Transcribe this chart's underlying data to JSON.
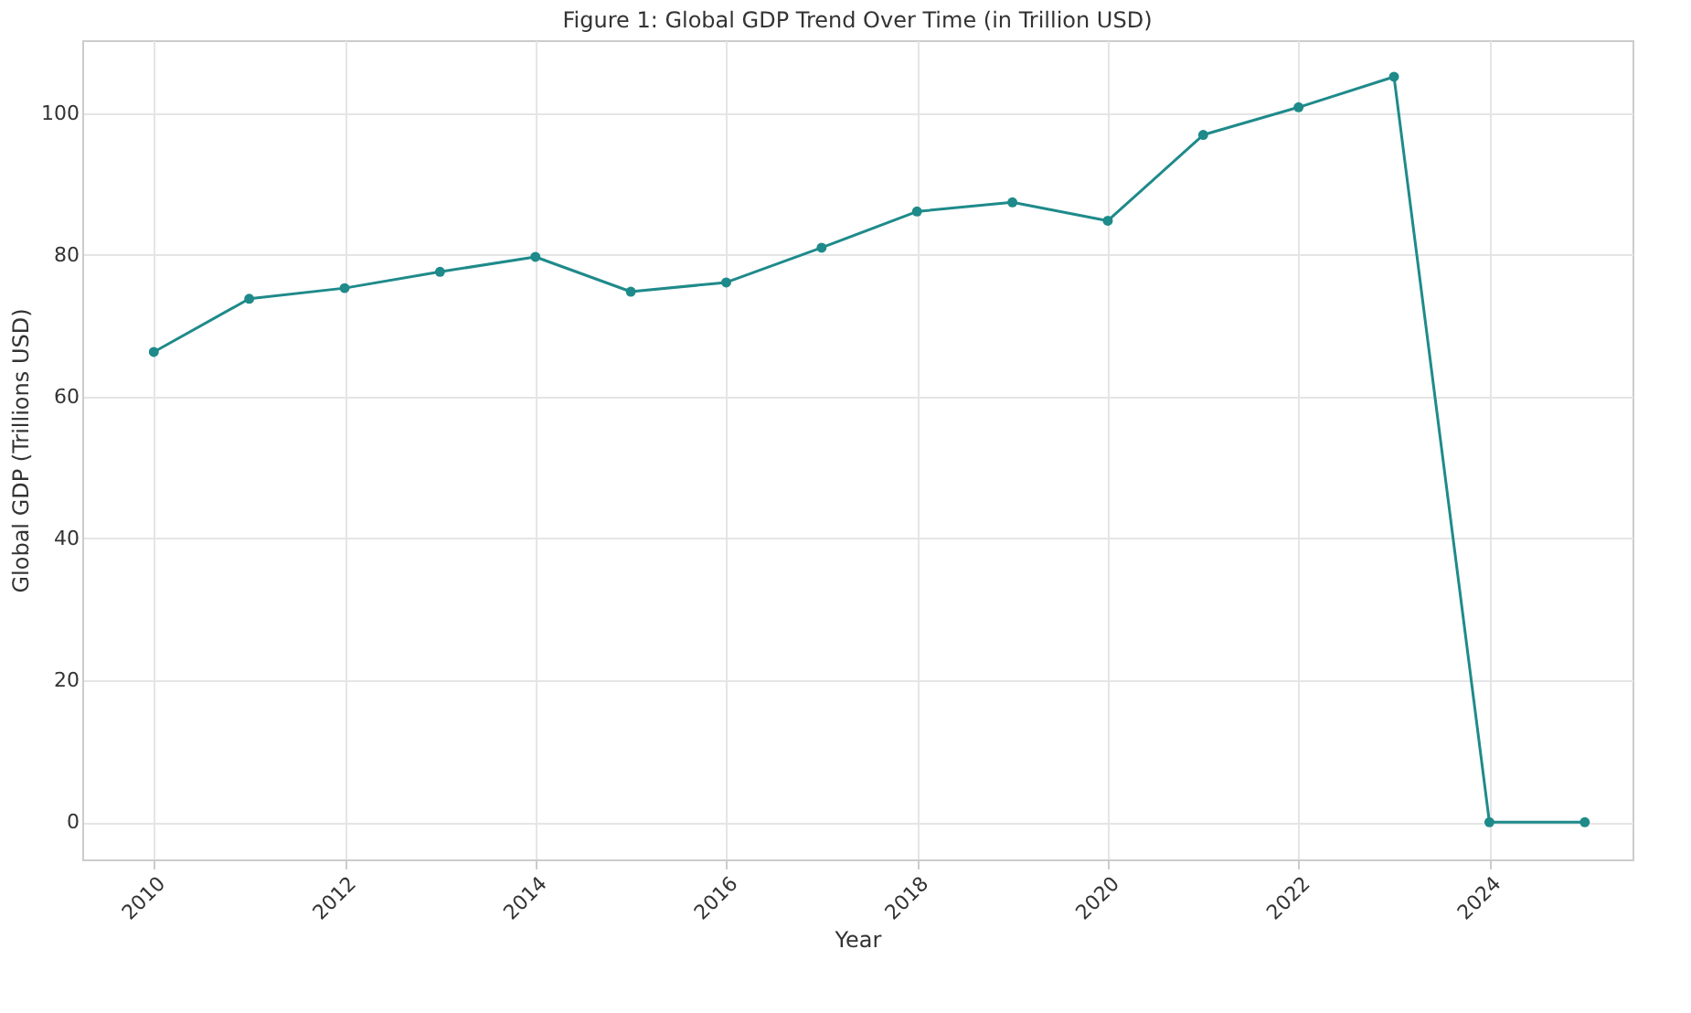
{
  "chart_data": {
    "type": "line",
    "title": "Figure 1: Global GDP Trend Over Time (in Trillion USD)",
    "xlabel": "Year",
    "ylabel": "Global GDP (Trillions USD)",
    "x": [
      2010,
      2011,
      2012,
      2013,
      2014,
      2015,
      2016,
      2017,
      2018,
      2019,
      2020,
      2021,
      2022,
      2023,
      2024,
      2025
    ],
    "series": [
      {
        "color": "#1f8a8a",
        "values": [
          66.3,
          73.8,
          75.3,
          77.6,
          79.7,
          74.8,
          76.1,
          81.0,
          86.1,
          87.4,
          84.8,
          96.9,
          100.8,
          105.1,
          0,
          0
        ]
      }
    ],
    "xlim": [
      2009.25,
      2025.5
    ],
    "xticks": [
      2010,
      2012,
      2014,
      2016,
      2018,
      2020,
      2022,
      2024
    ],
    "ylim": [
      -5.25,
      110.25
    ],
    "yticks": [
      0,
      20,
      40,
      60,
      80,
      100
    ],
    "grid": true,
    "marker": "circle",
    "line_style": "solid"
  }
}
